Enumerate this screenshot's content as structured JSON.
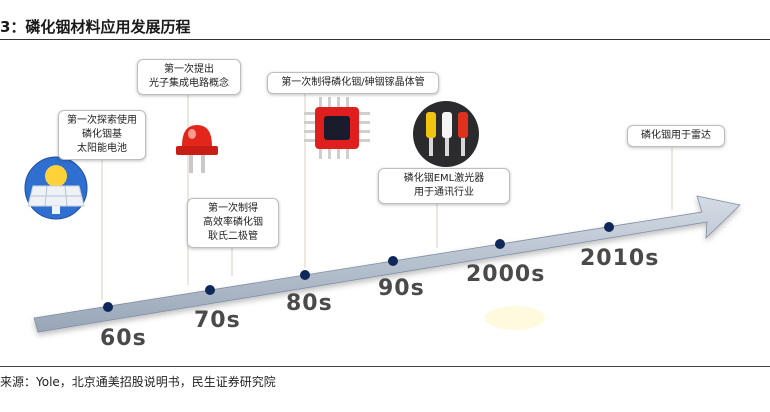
{
  "title": "3：磷化铟材料应用发展历程",
  "source": "来源：Yole，北京通美招股说明书，民生证券研究院",
  "eras": [
    {
      "id": "60s",
      "label": "60s"
    },
    {
      "id": "70s",
      "label": "70s"
    },
    {
      "id": "80s",
      "label": "80s"
    },
    {
      "id": "90s",
      "label": "90s"
    },
    {
      "id": "2000s",
      "label": "2000s"
    },
    {
      "id": "2010s",
      "label": "2010s"
    }
  ],
  "events": [
    {
      "id": "solar",
      "text": "第一次探索使用\n磷化铟基\n太阳能电池"
    },
    {
      "id": "ic",
      "text": "第一次提出\n光子集成电路概念"
    },
    {
      "id": "led",
      "text": "第一次制得\n高效率磷化铟\n耿氏二极管"
    },
    {
      "id": "crystal",
      "text": "第一次制得磷化铟/砷铟镓晶体管"
    },
    {
      "id": "eml",
      "text": "磷化铟EML激光器\n用于通讯行业"
    },
    {
      "id": "radar",
      "text": "磷化铟用于雷达"
    }
  ],
  "colors": {
    "arrow": "#aab6c5",
    "arrow_edge": "#7f8ea3",
    "dot": "#10275a",
    "era_text": "#4a4a4a",
    "siren": "#e3261b",
    "chip": "#e01e1e"
  },
  "icons": [
    "solar-panel-icon",
    "siren-icon",
    "chip-icon",
    "rca-cable-icon"
  ]
}
